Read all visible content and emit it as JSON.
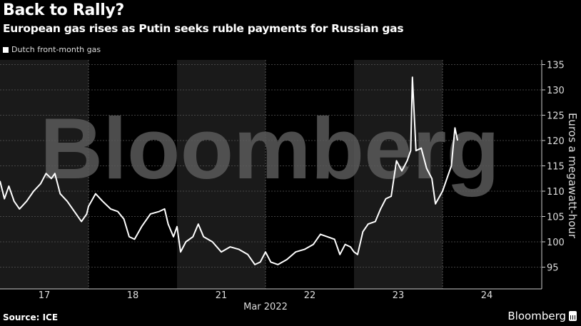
{
  "header": {
    "title": "Back to Rally?",
    "subtitle": "European gas rises as Putin seeks ruble payments for Russian gas"
  },
  "legend": {
    "items": [
      {
        "label": "Dutch front-month gas",
        "color": "#ffffff"
      }
    ]
  },
  "footer": {
    "source": "Source: ICE",
    "brand": "Bloomberg"
  },
  "watermark": "Bloomberg",
  "colors": {
    "background": "#000000",
    "shaded_band": "#1a1a1a",
    "line": "#ffffff",
    "grid": "#444444",
    "watermark": "#5a5a5a"
  },
  "chart_data": {
    "type": "line",
    "title": "Back to Rally?",
    "subtitle": "European gas rises as Putin seeks ruble payments for Russian gas",
    "xlabel": "Mar 2022",
    "ylabel": "Euros a megawatt-hour",
    "ylim": [
      92,
      137
    ],
    "yticks": [
      95,
      100,
      105,
      110,
      115,
      120,
      125,
      130,
      135
    ],
    "xticks": [
      "17",
      "18",
      "21",
      "22",
      "23",
      "24"
    ],
    "x_axis_caption": "Mar 2022",
    "grid": true,
    "legend_position": "top-left",
    "shaded_days": [
      "17",
      "21",
      "23"
    ],
    "series": [
      {
        "name": "Dutch front-month gas",
        "points": [
          {
            "day": "17",
            "t": 0.0,
            "v": 112.0
          },
          {
            "day": "17",
            "t": 0.05,
            "v": 108.5
          },
          {
            "day": "17",
            "t": 0.1,
            "v": 111.0
          },
          {
            "day": "17",
            "t": 0.16,
            "v": 108.0
          },
          {
            "day": "17",
            "t": 0.22,
            "v": 106.5
          },
          {
            "day": "17",
            "t": 0.3,
            "v": 108.0
          },
          {
            "day": "17",
            "t": 0.38,
            "v": 110.0
          },
          {
            "day": "17",
            "t": 0.46,
            "v": 111.5
          },
          {
            "day": "17",
            "t": 0.52,
            "v": 113.5
          },
          {
            "day": "17",
            "t": 0.58,
            "v": 112.5
          },
          {
            "day": "17",
            "t": 0.62,
            "v": 113.5
          },
          {
            "day": "17",
            "t": 0.68,
            "v": 109.5
          },
          {
            "day": "17",
            "t": 0.76,
            "v": 108.0
          },
          {
            "day": "17",
            "t": 0.84,
            "v": 106.0
          },
          {
            "day": "17",
            "t": 0.92,
            "v": 104.0
          },
          {
            "day": "17",
            "t": 0.98,
            "v": 105.5
          },
          {
            "day": "18",
            "t": 0.0,
            "v": 107.0
          },
          {
            "day": "18",
            "t": 0.08,
            "v": 109.5
          },
          {
            "day": "18",
            "t": 0.16,
            "v": 108.0
          },
          {
            "day": "18",
            "t": 0.25,
            "v": 106.5
          },
          {
            "day": "18",
            "t": 0.33,
            "v": 106.0
          },
          {
            "day": "18",
            "t": 0.4,
            "v": 104.5
          },
          {
            "day": "18",
            "t": 0.46,
            "v": 101.0
          },
          {
            "day": "18",
            "t": 0.52,
            "v": 100.5
          },
          {
            "day": "18",
            "t": 0.6,
            "v": 103.0
          },
          {
            "day": "18",
            "t": 0.7,
            "v": 105.5
          },
          {
            "day": "18",
            "t": 0.8,
            "v": 106.0
          },
          {
            "day": "18",
            "t": 0.86,
            "v": 106.5
          },
          {
            "day": "18",
            "t": 0.9,
            "v": 103.5
          },
          {
            "day": "18",
            "t": 0.96,
            "v": 101.0
          },
          {
            "day": "21",
            "t": 0.0,
            "v": 103.0
          },
          {
            "day": "21",
            "t": 0.04,
            "v": 98.0
          },
          {
            "day": "21",
            "t": 0.1,
            "v": 100.0
          },
          {
            "day": "21",
            "t": 0.18,
            "v": 101.0
          },
          {
            "day": "21",
            "t": 0.24,
            "v": 103.5
          },
          {
            "day": "21",
            "t": 0.3,
            "v": 101.0
          },
          {
            "day": "21",
            "t": 0.4,
            "v": 100.0
          },
          {
            "day": "21",
            "t": 0.5,
            "v": 98.0
          },
          {
            "day": "21",
            "t": 0.6,
            "v": 99.0
          },
          {
            "day": "21",
            "t": 0.7,
            "v": 98.5
          },
          {
            "day": "21",
            "t": 0.8,
            "v": 97.5
          },
          {
            "day": "21",
            "t": 0.88,
            "v": 95.5
          },
          {
            "day": "21",
            "t": 0.94,
            "v": 96.0
          },
          {
            "day": "22",
            "t": 0.0,
            "v": 98.0
          },
          {
            "day": "22",
            "t": 0.06,
            "v": 96.0
          },
          {
            "day": "22",
            "t": 0.14,
            "v": 95.5
          },
          {
            "day": "22",
            "t": 0.24,
            "v": 96.5
          },
          {
            "day": "22",
            "t": 0.34,
            "v": 98.0
          },
          {
            "day": "22",
            "t": 0.44,
            "v": 98.5
          },
          {
            "day": "22",
            "t": 0.54,
            "v": 99.5
          },
          {
            "day": "22",
            "t": 0.62,
            "v": 101.5
          },
          {
            "day": "22",
            "t": 0.7,
            "v": 101.0
          },
          {
            "day": "22",
            "t": 0.78,
            "v": 100.5
          },
          {
            "day": "22",
            "t": 0.84,
            "v": 97.5
          },
          {
            "day": "22",
            "t": 0.9,
            "v": 99.5
          },
          {
            "day": "22",
            "t": 0.96,
            "v": 99.0
          },
          {
            "day": "23",
            "t": 0.0,
            "v": 98.0
          },
          {
            "day": "23",
            "t": 0.04,
            "v": 97.5
          },
          {
            "day": "23",
            "t": 0.1,
            "v": 102.0
          },
          {
            "day": "23",
            "t": 0.16,
            "v": 103.5
          },
          {
            "day": "23",
            "t": 0.24,
            "v": 104.0
          },
          {
            "day": "23",
            "t": 0.3,
            "v": 106.5
          },
          {
            "day": "23",
            "t": 0.36,
            "v": 108.5
          },
          {
            "day": "23",
            "t": 0.42,
            "v": 109.0
          },
          {
            "day": "23",
            "t": 0.48,
            "v": 116.0
          },
          {
            "day": "23",
            "t": 0.54,
            "v": 114.0
          },
          {
            "day": "23",
            "t": 0.6,
            "v": 116.0
          },
          {
            "day": "23",
            "t": 0.64,
            "v": 118.0
          },
          {
            "day": "23",
            "t": 0.66,
            "v": 132.5
          },
          {
            "day": "23",
            "t": 0.7,
            "v": 118.0
          },
          {
            "day": "23",
            "t": 0.76,
            "v": 118.5
          },
          {
            "day": "23",
            "t": 0.82,
            "v": 114.5
          },
          {
            "day": "23",
            "t": 0.88,
            "v": 112.5
          },
          {
            "day": "23",
            "t": 0.92,
            "v": 107.5
          },
          {
            "day": "24",
            "t": 0.0,
            "v": 110.0
          },
          {
            "day": "24",
            "t": 0.06,
            "v": 113.0
          },
          {
            "day": "24",
            "t": 0.1,
            "v": 115.0
          },
          {
            "day": "24",
            "t": 0.14,
            "v": 122.5
          },
          {
            "day": "24",
            "t": 0.17,
            "v": 120.0
          }
        ]
      }
    ]
  }
}
